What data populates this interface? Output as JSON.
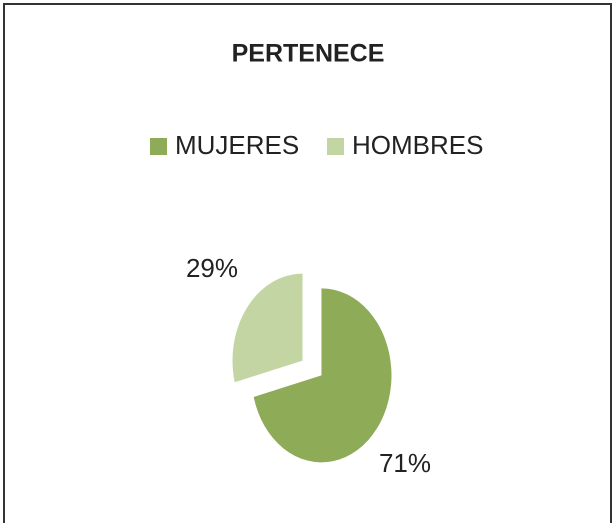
{
  "chart_data": {
    "type": "pie",
    "title": "PERTENECE",
    "categories": [
      "MUJERES",
      "HOMBRES"
    ],
    "values": [
      71,
      29
    ],
    "value_labels": [
      "71%",
      "29%"
    ],
    "colors": [
      "#8eab58",
      "#c4d5a4"
    ],
    "legend": "top"
  }
}
